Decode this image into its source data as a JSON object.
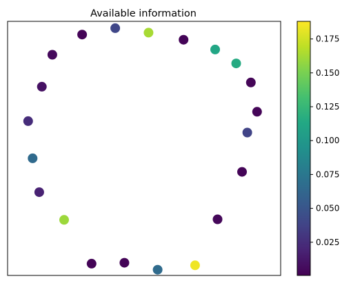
{
  "chart_data": {
    "type": "scatter",
    "title": "Available information",
    "xlabel": "",
    "ylabel": "",
    "x_ticks_visible": false,
    "y_ticks_visible": false,
    "colormap": "viridis",
    "colorbar": {
      "range": [
        0.0005,
        0.188
      ],
      "ticks": [
        0.025,
        0.05,
        0.075,
        0.1,
        0.125,
        0.15,
        0.175
      ],
      "tick_labels": [
        "0.025",
        "0.050",
        "0.075",
        "0.100",
        "0.125",
        "0.150",
        "0.175"
      ]
    },
    "points": [
      {
        "x": 0.0,
        "y": 1.0,
        "value": 0.163
      },
      {
        "x": 0.273,
        "y": 0.938,
        "value": 0.002
      },
      {
        "x": 0.519,
        "y": 0.852,
        "value": 0.111
      },
      {
        "x": 0.683,
        "y": 0.73,
        "value": 0.115
      },
      {
        "x": 0.798,
        "y": 0.563,
        "value": 0.003
      },
      {
        "x": 0.846,
        "y": 0.306,
        "value": 0.003
      },
      {
        "x": 0.77,
        "y": 0.124,
        "value": 0.038
      },
      {
        "x": 0.729,
        "y": -0.221,
        "value": 0.002
      },
      {
        "x": 0.538,
        "y": -0.637,
        "value": 0.004
      },
      {
        "x": 0.363,
        "y": -1.04,
        "value": 0.184
      },
      {
        "x": 0.071,
        "y": -1.079,
        "value": 0.066
      },
      {
        "x": -0.188,
        "y": -1.018,
        "value": 0.002
      },
      {
        "x": -0.444,
        "y": -1.026,
        "value": 0.002
      },
      {
        "x": -0.658,
        "y": -0.642,
        "value": 0.16
      },
      {
        "x": -0.852,
        "y": -0.399,
        "value": 0.018
      },
      {
        "x": -0.904,
        "y": -0.102,
        "value": 0.065
      },
      {
        "x": -0.939,
        "y": 0.224,
        "value": 0.024
      },
      {
        "x": -0.832,
        "y": 0.526,
        "value": 0.009
      },
      {
        "x": -0.75,
        "y": 0.806,
        "value": 0.005
      },
      {
        "x": -0.518,
        "y": 0.983,
        "value": 0.002
      },
      {
        "x": -0.26,
        "y": 1.039,
        "value": 0.04
      }
    ],
    "xlim": [
      -1.099,
      1.03
    ],
    "ylim": [
      -1.129,
      1.099
    ]
  }
}
